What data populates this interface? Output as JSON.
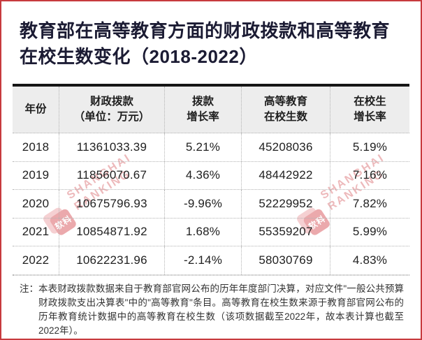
{
  "header": {
    "title_line1": "教育部在高等教育方面的财政拨款和高等教育",
    "title_line2": "在校生数变化（2018-2022）"
  },
  "chart_data": {
    "type": "table",
    "title": "教育部在高等教育方面的财政拨款和高等教育在校生数变化（2018-2022）",
    "columns": [
      "年份",
      "财政拨款（单位：万元）",
      "拨款增长率",
      "高等教育在校生数",
      "在校生增长率"
    ],
    "rows": [
      [
        "2018",
        "11361033.39",
        "5.21%",
        "45208036",
        "5.19%"
      ],
      [
        "2019",
        "11856070.67",
        "4.36%",
        "48442922",
        "7.16%"
      ],
      [
        "2020",
        "10675796.93",
        "-9.96%",
        "52229952",
        "7.82%"
      ],
      [
        "2021",
        "10854871.92",
        "1.68%",
        "55359207",
        "5.99%"
      ],
      [
        "2022",
        "10622231.96",
        "-2.14%",
        "58030769",
        "4.83%"
      ]
    ]
  },
  "table": {
    "headers": [
      {
        "line1": "年份",
        "line2": ""
      },
      {
        "line1": "财政拨款",
        "line2": "（单位：万元）"
      },
      {
        "line1": "拨款",
        "line2": "增长率"
      },
      {
        "line1": "高等教育",
        "line2": "在校生数"
      },
      {
        "line1": "在校生",
        "line2": "增长率"
      }
    ]
  },
  "note": {
    "label": "注：",
    "text": "本表财政拨款数据来自于教育部官网公布的历年年度部门决算，对应文件\"一般公共预算财政拨款支出决算表\"中的\"高等教育\"条目。高等教育在校生数来源于教育部官网公布的历年教育统计数据中的高等教育在校生数（该项数据截至2022年，故本表计算也截至2022年）。"
  },
  "watermark": {
    "line1": "SHANGHAI",
    "line2": "RANKING",
    "logo_text": "软科"
  },
  "colors": {
    "frame_border": "#c73a3e",
    "title_text": "#1b1b33",
    "header_bg": "#ededed",
    "rule_black": "#161616",
    "dotted_gray": "#b3b3b3",
    "watermark_pink": "#dc7579",
    "logo_red": "#d9565b"
  }
}
